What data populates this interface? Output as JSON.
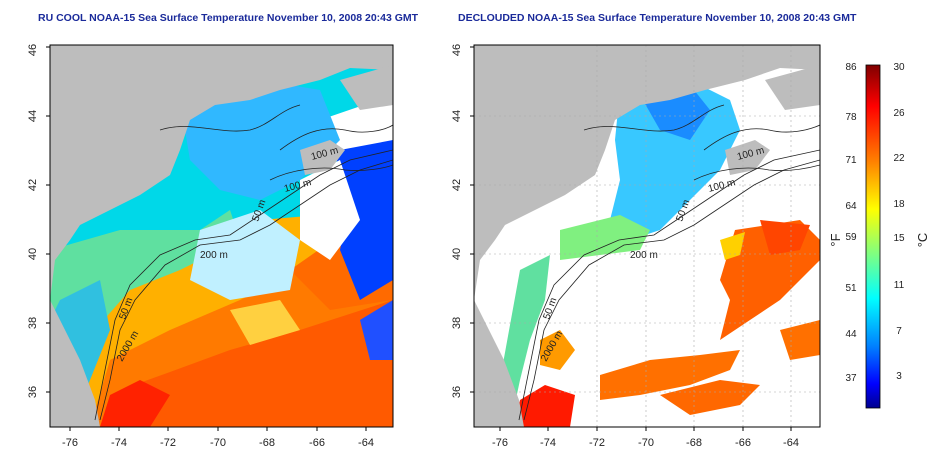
{
  "titles": {
    "left": "RU COOL NOAA-15 Sea Surface Temperature November 10, 2008 20:43 GMT",
    "right": "DECLOUDED NOAA-15 Sea Surface Temperature November 10, 2008 20:43 GMT"
  },
  "axes": {
    "lon_ticks": [
      "-76",
      "-74",
      "-72",
      "-70",
      "-68",
      "-66",
      "-64"
    ],
    "lat_ticks": [
      "36",
      "38",
      "40",
      "42",
      "44",
      "46"
    ]
  },
  "contour_labels": {
    "left": [
      "100 m",
      "100 m",
      "50 m",
      "200 m",
      "50 m",
      "2000 m"
    ],
    "right": [
      "100 m",
      "100 m",
      "50 m",
      "200 m",
      "50 m",
      "2000 m"
    ]
  },
  "colorbar": {
    "celsius_ticks": [
      "30",
      "26",
      "22",
      "18",
      "15",
      "11",
      "7",
      "3"
    ],
    "fahrenheit_ticks": [
      "86",
      "78",
      "71",
      "64",
      "59",
      "51",
      "44",
      "37"
    ],
    "celsius_unit": "°C",
    "fahrenheit_unit": "°F",
    "colors": [
      "#00008f",
      "#0000ff",
      "#0080ff",
      "#00ffff",
      "#80ff80",
      "#ffff00",
      "#ff8000",
      "#ff0000",
      "#800000"
    ]
  },
  "colors": {
    "land": "#bdbdbd",
    "no_data": "#ffffff",
    "title": "#1a2a9a"
  }
}
